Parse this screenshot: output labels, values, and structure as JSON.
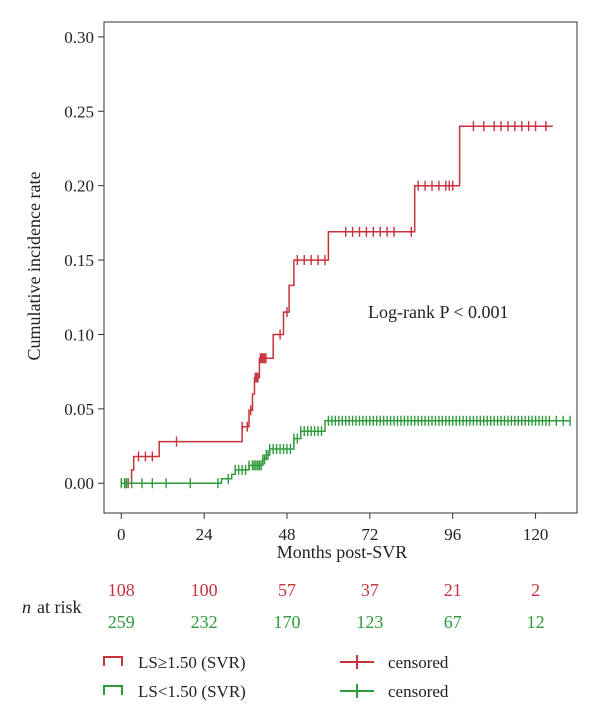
{
  "chart_data": {
    "type": "line",
    "subtype": "kaplan-meier-cumulative-incidence",
    "xlabel": "Months post-SVR",
    "ylabel": "Cumulative incidence rate",
    "xlim": [
      -5,
      132
    ],
    "ylim": [
      -0.02,
      0.31
    ],
    "x_ticks": [
      0,
      24,
      48,
      72,
      96,
      120
    ],
    "y_ticks": [
      "0.00",
      "0.05",
      "0.10",
      "0.15",
      "0.20",
      "0.25",
      "0.30"
    ],
    "annotation": "Log-rank P < 0.001",
    "colors": {
      "high": "#c8323c",
      "low": "#2e9a3c"
    },
    "series": [
      {
        "name": "LS≥1.50 (SVR)",
        "color": "#c8323c",
        "steps": [
          [
            0,
            0
          ],
          [
            3,
            0.009
          ],
          [
            3.6,
            0.018
          ],
          [
            11,
            0.028
          ],
          [
            35,
            0.038
          ],
          [
            37,
            0.049
          ],
          [
            38,
            0.06
          ],
          [
            38.6,
            0.071
          ],
          [
            40,
            0.084
          ],
          [
            44,
            0.1
          ],
          [
            47,
            0.115
          ],
          [
            48.6,
            0.133
          ],
          [
            50,
            0.15
          ],
          [
            60,
            0.169
          ],
          [
            85,
            0.2
          ],
          [
            98,
            0.24
          ],
          [
            125,
            0.24
          ]
        ],
        "censored_x": [
          1,
          2,
          5,
          7,
          9,
          16,
          35,
          36.5,
          37.5,
          38.8,
          39.2,
          39.6,
          40.3,
          40.7,
          41.1,
          41.5,
          41.9,
          46,
          48,
          51,
          53,
          55,
          57,
          59,
          65,
          67,
          69,
          71,
          73,
          75,
          77,
          79,
          84,
          86,
          88,
          90,
          92,
          94,
          95,
          96,
          102,
          105,
          108,
          110,
          112,
          114,
          116,
          118,
          120,
          123
        ]
      },
      {
        "name": "LS<1.50 (SVR)",
        "color": "#2e9a3c",
        "steps": [
          [
            0,
            0
          ],
          [
            29,
            0.003
          ],
          [
            32,
            0.006
          ],
          [
            33,
            0.009
          ],
          [
            37,
            0.012
          ],
          [
            41,
            0.016
          ],
          [
            42,
            0.019
          ],
          [
            43,
            0.023
          ],
          [
            50,
            0.03
          ],
          [
            52,
            0.035
          ],
          [
            59,
            0.042
          ],
          [
            130,
            0.042
          ]
        ],
        "censored_x": [
          0,
          1,
          1.5,
          3,
          6,
          9,
          13,
          20,
          28,
          31,
          33,
          34,
          35,
          36,
          37,
          38,
          38.5,
          39,
          39.5,
          40,
          40.5,
          41,
          41.5,
          42,
          42.5,
          43,
          44,
          45,
          46,
          47,
          48,
          49,
          50,
          51,
          52,
          53,
          54,
          55,
          56,
          57,
          58,
          60,
          61,
          62,
          63,
          64,
          65,
          66,
          67,
          68,
          69,
          70,
          71,
          72,
          73,
          74,
          75,
          76,
          77,
          78,
          79,
          80,
          81,
          82,
          83,
          84,
          85,
          86,
          87,
          88,
          89,
          90,
          91,
          92,
          93,
          94,
          95,
          96,
          97,
          98,
          99,
          100,
          101,
          102,
          103,
          104,
          105,
          106,
          107,
          108,
          109,
          110,
          111,
          112,
          113,
          114,
          115,
          116,
          117,
          118,
          119,
          120,
          121,
          122,
          123,
          124,
          126,
          128,
          130
        ]
      }
    ],
    "risk_table": {
      "label": "at risk",
      "label_italic": "n",
      "times": [
        0,
        24,
        48,
        72,
        96,
        120
      ],
      "rows": [
        {
          "group": "LS≥1.50 (SVR)",
          "color": "#c8323c",
          "values": [
            "108",
            "100",
            "57",
            "37",
            "21",
            "2"
          ]
        },
        {
          "group": "LS<1.50 (SVR)",
          "color": "#2e9a3c",
          "values": [
            "259",
            "232",
            "170",
            "123",
            "67",
            "12"
          ]
        }
      ]
    },
    "legend": {
      "placement": "bottom",
      "items": [
        {
          "label": "LS≥1.50 (SVR)",
          "color": "#c8323c",
          "kind": "step"
        },
        {
          "label": "censored",
          "color": "#c8323c",
          "kind": "censor"
        },
        {
          "label": "LS<1.50 (SVR)",
          "color": "#2e9a3c",
          "kind": "step"
        },
        {
          "label": "censored",
          "color": "#2e9a3c",
          "kind": "censor"
        }
      ]
    }
  }
}
